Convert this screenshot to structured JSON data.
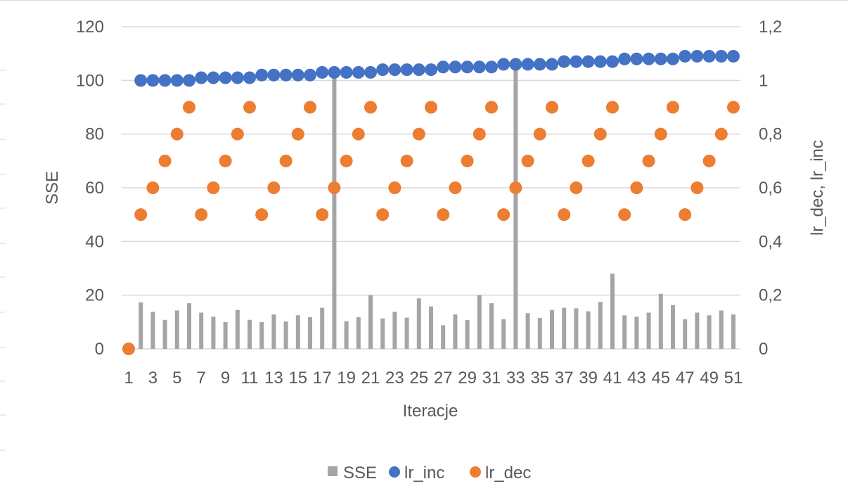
{
  "chart_data": {
    "type": "bar",
    "x": [
      1,
      2,
      3,
      4,
      5,
      6,
      7,
      8,
      9,
      10,
      11,
      12,
      13,
      14,
      15,
      16,
      17,
      18,
      19,
      20,
      21,
      22,
      23,
      24,
      25,
      26,
      27,
      28,
      29,
      30,
      31,
      32,
      33,
      34,
      35,
      36,
      37,
      38,
      39,
      40,
      41,
      42,
      43,
      44,
      45,
      46,
      47,
      48,
      49,
      50,
      51
    ],
    "x_tick_labels": [
      "1",
      "3",
      "5",
      "7",
      "9",
      "11",
      "13",
      "15",
      "17",
      "19",
      "21",
      "23",
      "25",
      "27",
      "29",
      "31",
      "33",
      "35",
      "37",
      "39",
      "41",
      "43",
      "45",
      "47",
      "49",
      "51"
    ],
    "xlabel": "Iteracje",
    "ylabel": "SSE",
    "y2label": "lr_dec, lr_inc",
    "ylim": [
      0,
      120
    ],
    "y_ticks": [
      "0",
      "20",
      "40",
      "60",
      "80",
      "100",
      "120"
    ],
    "y2lim": [
      0,
      1.2
    ],
    "y2_ticks": [
      "0",
      "0,2",
      "0,4",
      "0,6",
      "0,8",
      "1",
      "1,2"
    ],
    "grid": true,
    "legend_position": "bottom",
    "series": [
      {
        "name": "SSE",
        "type": "bar",
        "axis": "left",
        "color": "#a5a5a5",
        "values": [
          0,
          17.3,
          13.8,
          10.8,
          14.3,
          17,
          13.5,
          12,
          10,
          14.5,
          10.8,
          10,
          12.8,
          10.2,
          12.5,
          11.8,
          15.3,
          101,
          10.3,
          11.8,
          20,
          11.3,
          13.8,
          11.6,
          18.8,
          15.8,
          8.8,
          12.8,
          10.7,
          20,
          17,
          11,
          106,
          13.3,
          11.5,
          14.5,
          15.3,
          15.1,
          14,
          17.5,
          28,
          12.5,
          12,
          13.5,
          20.5,
          16.3,
          11,
          13.5,
          12.5,
          14.3,
          12.8
        ]
      },
      {
        "name": "lr_inc",
        "type": "scatter",
        "axis": "right",
        "color": "#4472c4",
        "values": [
          null,
          1,
          1,
          1,
          1,
          1,
          1.01,
          1.01,
          1.01,
          1.01,
          1.01,
          1.02,
          1.02,
          1.02,
          1.02,
          1.02,
          1.03,
          1.03,
          1.03,
          1.03,
          1.03,
          1.04,
          1.04,
          1.04,
          1.04,
          1.04,
          1.05,
          1.05,
          1.05,
          1.05,
          1.05,
          1.06,
          1.06,
          1.06,
          1.06,
          1.06,
          1.07,
          1.07,
          1.07,
          1.07,
          1.07,
          1.08,
          1.08,
          1.08,
          1.08,
          1.08,
          1.09,
          1.09,
          1.09,
          1.09,
          1.09
        ]
      },
      {
        "name": "lr_dec",
        "type": "scatter",
        "axis": "right",
        "color": "#ed7d31",
        "values": [
          0,
          0.5,
          0.6,
          0.7,
          0.8,
          0.9,
          0.5,
          0.6,
          0.7,
          0.8,
          0.9,
          0.5,
          0.6,
          0.7,
          0.8,
          0.9,
          0.5,
          0.6,
          0.7,
          0.8,
          0.9,
          0.5,
          0.6,
          0.7,
          0.8,
          0.9,
          0.5,
          0.6,
          0.7,
          0.8,
          0.9,
          0.5,
          0.6,
          0.7,
          0.8,
          0.9,
          0.5,
          0.6,
          0.7,
          0.8,
          0.9,
          0.5,
          0.6,
          0.7,
          0.8,
          0.9,
          0.5,
          0.6,
          0.7,
          0.8,
          0.9
        ]
      }
    ]
  },
  "colors": {
    "grid": "#d9d9d9",
    "text": "#595959"
  }
}
